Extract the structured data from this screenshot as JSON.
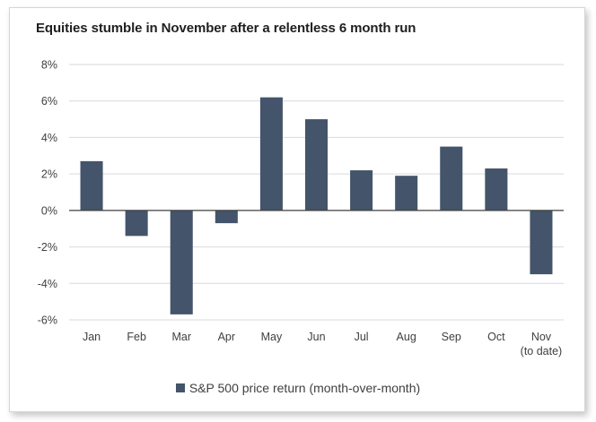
{
  "chart_data": {
    "type": "bar",
    "title": "Equities stumble in November after a relentless 6 month run",
    "categories": [
      "Jan",
      "Feb",
      "Mar",
      "Apr",
      "May",
      "Jun",
      "Jul",
      "Aug",
      "Sep",
      "Oct",
      "Nov"
    ],
    "category_sublabels": [
      "",
      "",
      "",
      "",
      "",
      "",
      "",
      "",
      "",
      "",
      "(to date)"
    ],
    "series": [
      {
        "name": "S&P 500 price return (month-over-month)",
        "values": [
          2.7,
          -1.4,
          -5.7,
          -0.7,
          6.2,
          5.0,
          2.2,
          1.9,
          3.5,
          2.3,
          -3.5
        ],
        "color": "#44546a"
      }
    ],
    "ylim": [
      -6,
      8
    ],
    "yticks": [
      8,
      6,
      4,
      2,
      0,
      -2,
      -4,
      -6
    ],
    "ytick_labels": [
      "8%",
      "6%",
      "4%",
      "2%",
      "0%",
      "-2%",
      "-4%",
      "-6%"
    ],
    "grid": true,
    "legend": "bottom",
    "gridline_color": "#d9d9d9",
    "axis_color": "#3f3f3f"
  }
}
